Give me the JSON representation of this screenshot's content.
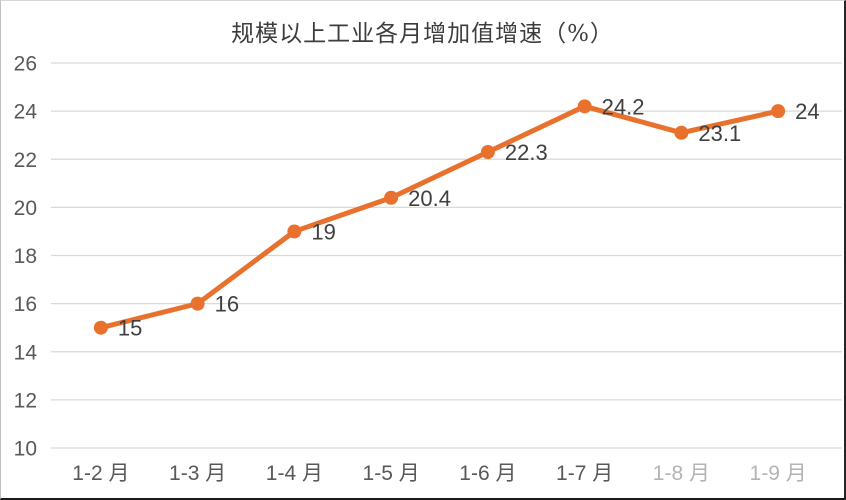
{
  "chart_data": {
    "type": "line",
    "title": "规模以上工业各月增加值增速（%）",
    "categories": [
      "1-2 月",
      "1-3 月",
      "1-4 月",
      "1-5 月",
      "1-6 月",
      "1-7 月",
      "1-8 月",
      "1-9 月"
    ],
    "series": [
      {
        "name": "规模以上工业各月增加值增速",
        "values": [
          15,
          16,
          19,
          20.4,
          22.3,
          24.2,
          23.1,
          24
        ]
      }
    ],
    "data_labels": [
      "15",
      "16",
      "19",
      "20.4",
      "22.3",
      "24.2",
      "23.1",
      "24"
    ],
    "xlabel": "",
    "ylabel": "",
    "ylim": [
      10,
      26
    ],
    "ytick_step": 2,
    "grid": true,
    "legend": "none",
    "colors": {
      "line": "#E8712D",
      "marker": "#E8712D",
      "gridline": "#D9D9D9",
      "axis_text": "#595959",
      "data_label_text": "#404040",
      "title_text": "#3D3D3D"
    },
    "faded_tick_indices": [
      6,
      7
    ]
  }
}
